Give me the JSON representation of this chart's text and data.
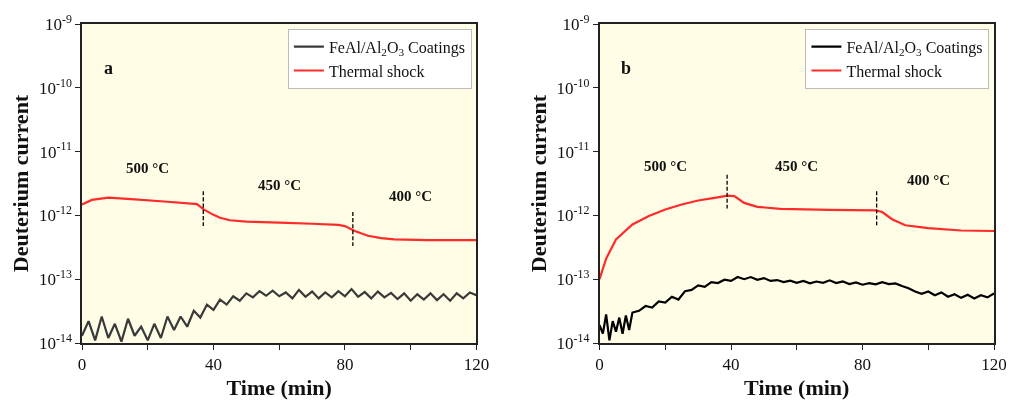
{
  "chart_data": [
    {
      "type": "line",
      "title": "a",
      "xlabel": "Time (min)",
      "ylabel": "Deuterium current",
      "log": "y",
      "legend": "top right",
      "xlim": [
        0,
        120
      ],
      "ylim": [
        1e-14,
        1e-09
      ],
      "xticks": [
        0,
        {
          "value": 20,
          "label": null
        },
        40,
        {
          "value": 60,
          "label": null
        },
        80,
        {
          "value": 100,
          "label": null
        },
        120
      ],
      "yticks": [
        {
          "value": 1e-14,
          "label": "10$^{-14}$"
        },
        {
          "value": 1e-13,
          "label": "10$^{-13}$"
        },
        {
          "value": 1e-12,
          "label": "10$^{-12}$"
        },
        {
          "value": 1e-11,
          "label": "10$^{-11}$"
        },
        {
          "value": 1e-10,
          "label": "10$^{-10}$"
        },
        {
          "value": 1e-09,
          "label": "10$^{-9}$"
        }
      ],
      "series": [
        {
          "name": "FeAl/Al$_{2}$O$_{3}$ Coatings",
          "color": "#3a3a3a",
          "x": [
            0,
            2,
            4,
            6,
            8,
            10,
            12,
            14,
            16,
            18,
            20,
            22,
            24,
            26,
            28,
            30,
            32,
            34,
            36,
            38,
            40,
            42,
            44,
            46,
            48,
            50,
            52,
            54,
            56,
            58,
            60,
            62,
            64,
            66,
            68,
            70,
            72,
            74,
            76,
            78,
            80,
            82,
            84,
            86,
            88,
            90,
            92,
            94,
            96,
            98,
            100,
            102,
            104,
            106,
            108,
            110,
            112,
            114,
            116,
            118,
            120
          ],
          "values": [
            1.3e-14,
            2.2e-14,
            1.1e-14,
            2.6e-14,
            1.2e-14,
            2e-14,
            1.05e-14,
            2.4e-14,
            1.3e-14,
            1.8e-14,
            1.1e-14,
            2e-14,
            1.2e-14,
            2.6e-14,
            1.6e-14,
            2.6e-14,
            1.8e-14,
            3.2e-14,
            2.5e-14,
            4e-14,
            3.3e-14,
            4.8e-14,
            4e-14,
            5.4e-14,
            4.6e-14,
            6e-14,
            5.2e-14,
            6.5e-14,
            5.5e-14,
            6.6e-14,
            5.4e-14,
            6.2e-14,
            5e-14,
            6.8e-14,
            5.3e-14,
            6.4e-14,
            5e-14,
            6.2e-14,
            5.2e-14,
            6.5e-14,
            5.4e-14,
            7e-14,
            5.3e-14,
            6.3e-14,
            5e-14,
            6.4e-14,
            5.2e-14,
            6.1e-14,
            4.9e-14,
            6e-14,
            4.6e-14,
            5.8e-14,
            4.8e-14,
            6e-14,
            4.7e-14,
            5.8e-14,
            4.6e-14,
            6e-14,
            5e-14,
            6.2e-14,
            5.6e-14
          ]
        },
        {
          "name": "Thermal shock",
          "color": "#ff2a2a",
          "x": [
            0,
            3,
            8,
            15,
            25,
            35,
            37,
            40,
            42,
            45,
            50,
            60,
            70,
            78,
            80,
            83,
            87,
            91,
            95,
            105,
            120
          ],
          "values": [
            1.48e-12,
            1.75e-12,
            1.9e-12,
            1.8e-12,
            1.65e-12,
            1.5e-12,
            1.24e-12,
            1.02e-12,
            9.2e-13,
            8.4e-13,
            8e-13,
            7.7e-13,
            7.4e-13,
            7.1e-13,
            6.8e-13,
            5.7e-13,
            4.8e-13,
            4.4e-13,
            4.2e-13,
            4.1e-13,
            4.1e-13
          ]
        },
        {
          "color": "#000000",
          "line_style": "dashed",
          "x": [
            36.9,
            36.9
          ],
          "values": [
            2.4e-12,
            6.8e-13
          ]
        },
        {
          "color": "#000000",
          "line_style": "dashed",
          "x": [
            82.4,
            82.4
          ],
          "values": [
            1.13e-12,
            3.3e-13
          ]
        }
      ],
      "annotations": [
        "500 °C",
        "450 °C",
        "400 °C"
      ]
    },
    {
      "type": "line",
      "title": "b",
      "xlabel": "Time (min)",
      "ylabel": "Deuterium current",
      "log": "y",
      "legend": "top right",
      "xlim": [
        0,
        120
      ],
      "ylim": [
        1e-14,
        1e-09
      ],
      "xticks": [
        0,
        {
          "value": 20,
          "label": null
        },
        40,
        {
          "value": 60,
          "label": null
        },
        80,
        {
          "value": 100,
          "label": null
        },
        120
      ],
      "yticks": [
        {
          "value": 1e-14,
          "label": "10$^{-14}$"
        },
        {
          "value": 1e-13,
          "label": "10$^{-13}$"
        },
        {
          "value": 1e-12,
          "label": "10$^{-12}$"
        },
        {
          "value": 1e-11,
          "label": "10$^{-11}$"
        },
        {
          "value": 1e-10,
          "label": "10$^{-10}$"
        },
        {
          "value": 1e-09,
          "label": "10$^{-9}$"
        }
      ],
      "series": [
        {
          "name": "FeAl/Al$_{2}$O$_{3}$ Coatings",
          "color": "#000000",
          "x": [
            0,
            1,
            2,
            3,
            4,
            5,
            6,
            7,
            8,
            9,
            10,
            12,
            14,
            16,
            18,
            20,
            22,
            24,
            26,
            28,
            30,
            32,
            34,
            36,
            38,
            40,
            42,
            44,
            46,
            48,
            50,
            52,
            54,
            56,
            58,
            60,
            62,
            64,
            66,
            68,
            70,
            72,
            74,
            76,
            78,
            80,
            82,
            84,
            86,
            88,
            90,
            92,
            94,
            96,
            98,
            100,
            102,
            104,
            106,
            108,
            110,
            112,
            114,
            116,
            118,
            120
          ],
          "values": [
            1.9e-14,
            1.4e-14,
            2.8e-14,
            1.1e-14,
            2.2e-14,
            1.5e-14,
            2.5e-14,
            1.4e-14,
            2.7e-14,
            1.6e-14,
            3e-14,
            3.2e-14,
            3.8e-14,
            3.6e-14,
            4.5e-14,
            4.3e-14,
            5.3e-14,
            4.8e-14,
            6.5e-14,
            6.8e-14,
            8e-14,
            7.6e-14,
            9e-14,
            8.7e-14,
            9.8e-14,
            9.4e-14,
            1.08e-13,
            1e-13,
            1.08e-13,
            9.8e-14,
            1.04e-13,
            9.4e-14,
            9.7e-14,
            9e-14,
            9.5e-14,
            8.8e-14,
            9.4e-14,
            8.6e-14,
            9.2e-14,
            8.8e-14,
            9.6e-14,
            8.7e-14,
            9.2e-14,
            8.4e-14,
            8.9e-14,
            8.2e-14,
            8.7e-14,
            8.3e-14,
            9e-14,
            8.4e-14,
            8.6e-14,
            7.8e-14,
            7.2e-14,
            6.4e-14,
            5.9e-14,
            6.4e-14,
            5.6e-14,
            6.2e-14,
            5.3e-14,
            5.8e-14,
            5.1e-14,
            5.7e-14,
            5e-14,
            5.6e-14,
            5.2e-14,
            6e-14
          ]
        },
        {
          "name": "Thermal shock",
          "color": "#ff2a2a",
          "x": [
            0,
            2,
            5,
            10,
            15,
            20,
            25,
            30,
            35,
            39,
            41,
            44,
            48,
            55,
            70,
            84,
            86,
            89,
            93,
            100,
            110,
            120
          ],
          "values": [
            1e-13,
            2.1e-13,
            4.2e-13,
            7.2e-13,
            9.8e-13,
            1.24e-12,
            1.48e-12,
            1.71e-12,
            1.88e-12,
            2.04e-12,
            2e-12,
            1.57e-12,
            1.36e-12,
            1.27e-12,
            1.22e-12,
            1.2e-12,
            1.13e-12,
            8.7e-13,
            7e-13,
            6.3e-13,
            5.8e-13,
            5.7e-13
          ]
        },
        {
          "color": "#000000",
          "line_style": "dashed",
          "x": [
            38.8,
            38.8
          ],
          "values": [
            4.35e-12,
            1.28e-12
          ]
        },
        {
          "color": "#000000",
          "line_style": "dashed",
          "x": [
            84.3,
            84.3
          ],
          "values": [
            2.39e-12,
            7e-13
          ]
        }
      ],
      "annotations": [
        "500 °C",
        "450 °C",
        "400 °C"
      ]
    }
  ]
}
